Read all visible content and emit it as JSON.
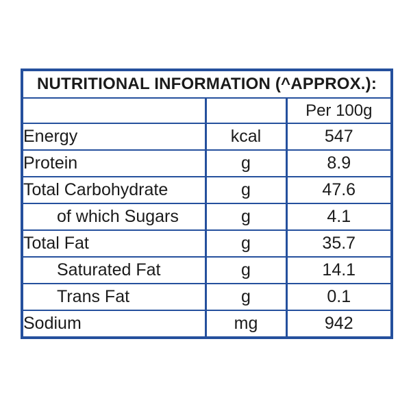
{
  "page": {
    "background": "#ffffff"
  },
  "table": {
    "title": "NUTRITIONAL INFORMATION (^APPROX.):",
    "column_header": "Per 100g",
    "border_color": "#25509d",
    "text_color": "#1b1b1b",
    "rows": [
      {
        "label": "Energy",
        "unit": "kcal",
        "value": "547",
        "indent": false
      },
      {
        "label": "Protein",
        "unit": "g",
        "value": "8.9",
        "indent": false
      },
      {
        "label": "Total Carbohydrate",
        "unit": "g",
        "value": "47.6",
        "indent": false
      },
      {
        "label": "of which Sugars",
        "unit": "g",
        "value": "4.1",
        "indent": true
      },
      {
        "label": "Total Fat",
        "unit": "g",
        "value": "35.7",
        "indent": false
      },
      {
        "label": "Saturated Fat",
        "unit": "g",
        "value": "14.1",
        "indent": true
      },
      {
        "label": "Trans Fat",
        "unit": "g",
        "value": "0.1",
        "indent": true
      },
      {
        "label": "Sodium",
        "unit": "mg",
        "value": "942",
        "indent": false
      }
    ]
  }
}
